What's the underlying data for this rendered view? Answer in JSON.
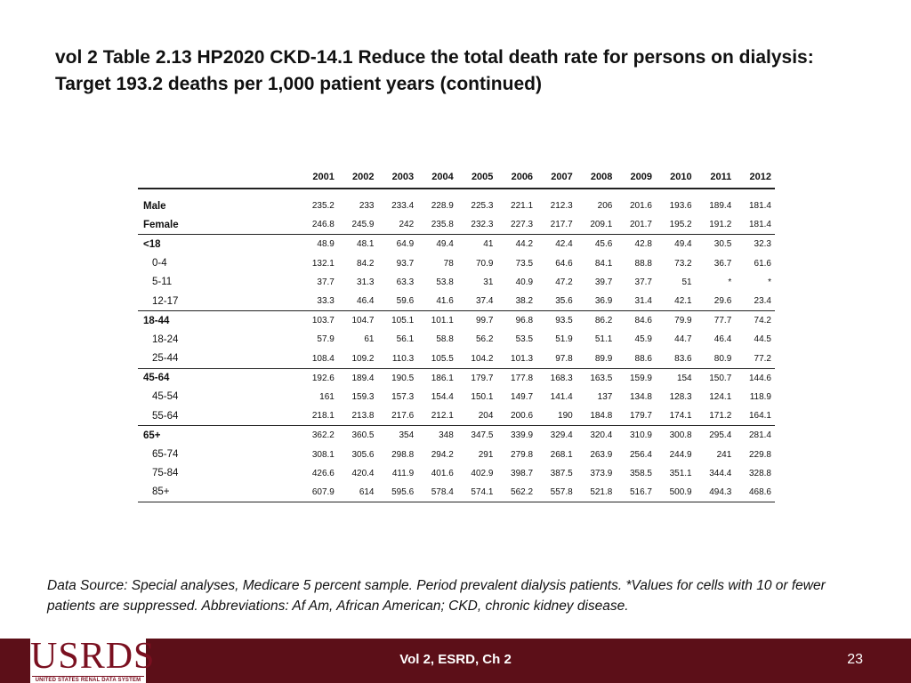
{
  "title": "vol 2 Table 2.13  HP2020 CKD-14.1 Reduce the total death rate for persons on dialysis: Target 193.2 deaths per 1,000 patient years (continued)",
  "table": {
    "years": [
      "2001",
      "2002",
      "2003",
      "2004",
      "2005",
      "2006",
      "2007",
      "2008",
      "2009",
      "2010",
      "2011",
      "2012"
    ],
    "rows": [
      {
        "label": "Male",
        "values": [
          "235.2",
          "233",
          "233.4",
          "228.9",
          "225.3",
          "221.1",
          "212.3",
          "206",
          "201.6",
          "193.6",
          "189.4",
          "181.4"
        ]
      },
      {
        "label": "Female",
        "values": [
          "246.8",
          "245.9",
          "242",
          "235.8",
          "232.3",
          "227.3",
          "217.7",
          "209.1",
          "201.7",
          "195.2",
          "191.2",
          "181.4"
        ]
      },
      {
        "label": "<18",
        "values": [
          "48.9",
          "48.1",
          "64.9",
          "49.4",
          "41",
          "44.2",
          "42.4",
          "45.6",
          "42.8",
          "49.4",
          "30.5",
          "32.3"
        ]
      },
      {
        "label": "0-4",
        "values": [
          "132.1",
          "84.2",
          "93.7",
          "78",
          "70.9",
          "73.5",
          "64.6",
          "84.1",
          "88.8",
          "73.2",
          "36.7",
          "61.6"
        ]
      },
      {
        "label": "5-11",
        "values": [
          "37.7",
          "31.3",
          "63.3",
          "53.8",
          "31",
          "40.9",
          "47.2",
          "39.7",
          "37.7",
          "51",
          "*",
          "*"
        ]
      },
      {
        "label": "12-17",
        "values": [
          "33.3",
          "46.4",
          "59.6",
          "41.6",
          "37.4",
          "38.2",
          "35.6",
          "36.9",
          "31.4",
          "42.1",
          "29.6",
          "23.4"
        ]
      },
      {
        "label": "18-44",
        "values": [
          "103.7",
          "104.7",
          "105.1",
          "101.1",
          "99.7",
          "96.8",
          "93.5",
          "86.2",
          "84.6",
          "79.9",
          "77.7",
          "74.2"
        ]
      },
      {
        "label": "18-24",
        "values": [
          "57.9",
          "61",
          "56.1",
          "58.8",
          "56.2",
          "53.5",
          "51.9",
          "51.1",
          "45.9",
          "44.7",
          "46.4",
          "44.5"
        ]
      },
      {
        "label": "25-44",
        "values": [
          "108.4",
          "109.2",
          "110.3",
          "105.5",
          "104.2",
          "101.3",
          "97.8",
          "89.9",
          "88.6",
          "83.6",
          "80.9",
          "77.2"
        ]
      },
      {
        "label": "45-64",
        "values": [
          "192.6",
          "189.4",
          "190.5",
          "186.1",
          "179.7",
          "177.8",
          "168.3",
          "163.5",
          "159.9",
          "154",
          "150.7",
          "144.6"
        ]
      },
      {
        "label": "45-54",
        "values": [
          "161",
          "159.3",
          "157.3",
          "154.4",
          "150.1",
          "149.7",
          "141.4",
          "137",
          "134.8",
          "128.3",
          "124.1",
          "118.9"
        ]
      },
      {
        "label": "55-64",
        "values": [
          "218.1",
          "213.8",
          "217.6",
          "212.1",
          "204",
          "200.6",
          "190",
          "184.8",
          "179.7",
          "174.1",
          "171.2",
          "164.1"
        ]
      },
      {
        "label": "65+",
        "values": [
          "362.2",
          "360.5",
          "354",
          "348",
          "347.5",
          "339.9",
          "329.4",
          "320.4",
          "310.9",
          "300.8",
          "295.4",
          "281.4"
        ]
      },
      {
        "label": "65-74",
        "values": [
          "308.1",
          "305.6",
          "298.8",
          "294.2",
          "291",
          "279.8",
          "268.1",
          "263.9",
          "256.4",
          "244.9",
          "241",
          "229.8"
        ]
      },
      {
        "label": "75-84",
        "values": [
          "426.6",
          "420.4",
          "411.9",
          "401.6",
          "402.9",
          "398.7",
          "387.5",
          "373.9",
          "358.5",
          "351.1",
          "344.4",
          "328.8"
        ]
      },
      {
        "label": "85+",
        "values": [
          "607.9",
          "614",
          "595.6",
          "578.4",
          "574.1",
          "562.2",
          "557.8",
          "521.8",
          "516.7",
          "500.9",
          "494.3",
          "468.6"
        ]
      }
    ]
  },
  "source": "Data Source: Special analyses, Medicare 5 percent sample. Period prevalent dialysis patients. *Values for cells with 10 or fewer patients are suppressed. Abbreviations: Af Am, African American; CKD, chronic kidney disease.",
  "footer": {
    "logo_text": "USRDS",
    "logo_subtext": "UNITED STATES RENAL DATA SYSTEM",
    "center": "Vol 2, ESRD, Ch 2",
    "page": "23"
  },
  "colors": {
    "footer_bg": "#5c0f18",
    "logo_color": "#7a1020"
  }
}
